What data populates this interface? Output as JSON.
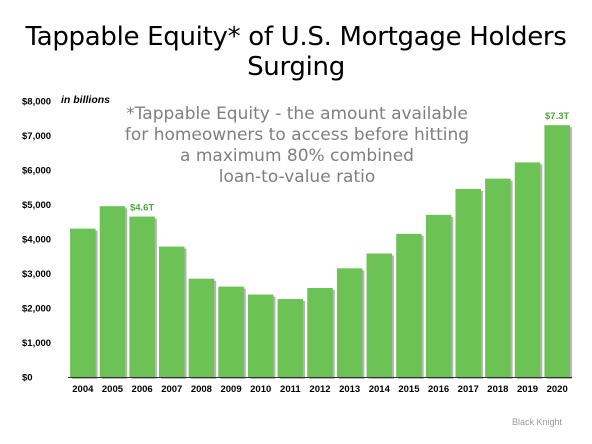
{
  "title": "Tappable Equity* of U.S. Mortgage Holders Surging",
  "note_lines": [
    "*Tappable Equity - the amount available",
    "for homeowners to access before hitting",
    "a maximum 80% combined",
    "loan-to-value ratio"
  ],
  "source": "Black Knight",
  "colors": {
    "bar": "#6cc255",
    "bar_shadow": "#b5b5b5",
    "label": "#4ea63a"
  },
  "chart_data": {
    "type": "bar",
    "title": "Tappable Equity* of U.S. Mortgage Holders Surging",
    "ylabel": "in billions",
    "xlabel": "",
    "ylim": [
      0,
      8000
    ],
    "y_ticks": [
      {
        "value": 0,
        "label": "$0"
      },
      {
        "value": 1000,
        "label": "$1,000"
      },
      {
        "value": 2000,
        "label": "$2,000"
      },
      {
        "value": 3000,
        "label": "$3,000"
      },
      {
        "value": 4000,
        "label": "$4,000"
      },
      {
        "value": 5000,
        "label": "$5,000"
      },
      {
        "value": 6000,
        "label": "$6,000"
      },
      {
        "value": 7000,
        "label": "$7,000"
      },
      {
        "value": 8000,
        "label": "$8,000"
      }
    ],
    "grid": false,
    "categories": [
      "2004",
      "2005",
      "2006",
      "2007",
      "2008",
      "2009",
      "2010",
      "2011",
      "2012",
      "2013",
      "2014",
      "2015",
      "2016",
      "2017",
      "2018",
      "2019",
      "2020"
    ],
    "values": [
      4300,
      4950,
      4650,
      3780,
      2850,
      2620,
      2390,
      2260,
      2580,
      3150,
      3580,
      4150,
      4700,
      5450,
      5750,
      6220,
      7300
    ],
    "data_labels": [
      {
        "category": "2006",
        "text": "$4.6T"
      },
      {
        "category": "2020",
        "text": "$7.3T"
      }
    ]
  }
}
